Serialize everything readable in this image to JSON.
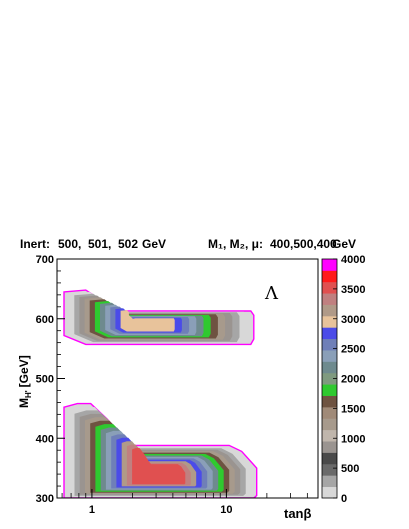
{
  "chart_data": {
    "type": "heatmap",
    "title": "",
    "header_left": {
      "prefix": "Inert:",
      "values": [
        "500,",
        "501,",
        "502"
      ],
      "unit": "GeV"
    },
    "header_right": {
      "params": "M₁, M₂, μ:",
      "values": "400,500,400",
      "unit": "GeV"
    },
    "annotation": "Λ",
    "xlabel": "tanβ",
    "ylabel": "MH' [GeV]",
    "ylabel_main": "M",
    "ylabel_sub": "H'",
    "ylabel_unit": "[GeV]",
    "x_scale": "log",
    "xlim": [
      0.55,
      48
    ],
    "ylim": [
      300,
      700
    ],
    "x_ticklabels": [
      {
        "value": 1,
        "label": "1"
      },
      {
        "value": 10,
        "label": "10"
      }
    ],
    "y_ticks": [
      300,
      400,
      500,
      600,
      700
    ],
    "colorbar": {
      "min": 0,
      "max": 4000,
      "labels": [
        "0",
        "500",
        "1000",
        "1500",
        "2000",
        "2500",
        "3000",
        "3500",
        "4000"
      ],
      "levels": 20,
      "colors": [
        "#d8d8d8",
        "#a6a6a6",
        "#6a6a6a",
        "#4a4a4a",
        "#9a9490",
        "#c0b6ac",
        "#a79a8c",
        "#a08a78",
        "#6e5341",
        "#2fc92f",
        "#7f9a7f",
        "#6e8a8e",
        "#8a9fb8",
        "#6f7fb8",
        "#4b4be8",
        "#e8c39b",
        "#b09a88",
        "#c08080",
        "#e05050",
        "#ff1a1a",
        "#ff00ff"
      ]
    },
    "regions": [
      {
        "name": "upper-island",
        "y_range": [
          555,
          650
        ],
        "x_range": [
          0.62,
          16
        ],
        "contours": [
          {
            "level": 0,
            "color": "#ff00ff"
          },
          {
            "level": 250,
            "color": "#d8d8d8"
          },
          {
            "level": 450,
            "color": "#a6a6a6"
          },
          {
            "level": 700,
            "color": "#9a9490"
          },
          {
            "level": 900,
            "color": "#a79a8c"
          },
          {
            "level": 1100,
            "color": "#6e5341"
          },
          {
            "level": 1300,
            "color": "#2fc92f"
          },
          {
            "level": 1500,
            "color": "#6e8a8e"
          },
          {
            "level": 1800,
            "color": "#8a9fb8"
          },
          {
            "level": 2200,
            "color": "#6f7fb8"
          },
          {
            "level": 2500,
            "color": "#4b4be8"
          },
          {
            "level": 3000,
            "color": "#e8c39b"
          }
        ]
      },
      {
        "name": "lower-island",
        "y_range": [
          300,
          460
        ],
        "x_range": [
          0.62,
          17
        ],
        "contours": [
          {
            "level": 0,
            "color": "#ff00ff"
          },
          {
            "level": 250,
            "color": "#d8d8d8"
          },
          {
            "level": 450,
            "color": "#a6a6a6"
          },
          {
            "level": 700,
            "color": "#9a9490"
          },
          {
            "level": 900,
            "color": "#a79a8c"
          },
          {
            "level": 1100,
            "color": "#6e5341"
          },
          {
            "level": 1300,
            "color": "#2fc92f"
          },
          {
            "level": 1500,
            "color": "#6e8a8e"
          },
          {
            "level": 1800,
            "color": "#8a9fb8"
          },
          {
            "level": 2200,
            "color": "#6f7fb8"
          },
          {
            "level": 2500,
            "color": "#4b4be8"
          },
          {
            "level": 2800,
            "color": "#b09a88"
          },
          {
            "level": 3000,
            "color": "#c08080"
          },
          {
            "level": 3300,
            "color": "#e05050"
          }
        ]
      }
    ]
  }
}
